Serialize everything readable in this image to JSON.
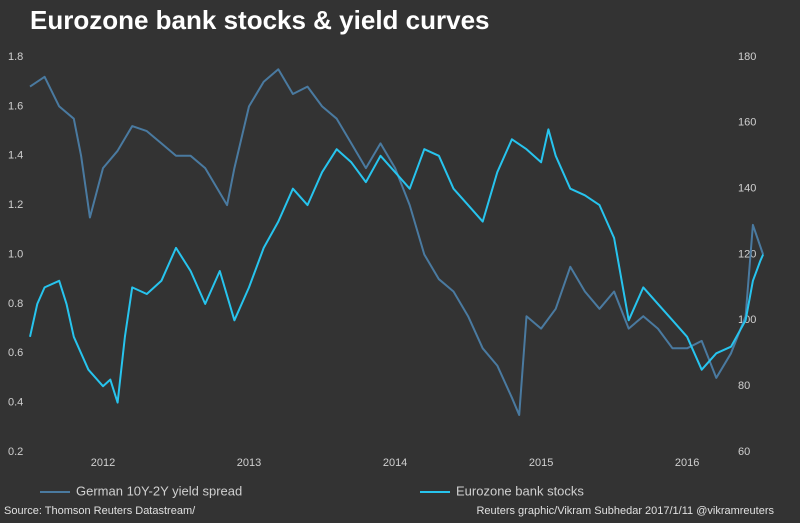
{
  "chart_data": {
    "type": "line",
    "title": "Eurozone bank stocks & yield curves",
    "source": "Source: Thomson Reuters Datastream/",
    "credit": "Reuters graphic/Vikram Subhedar 2017/1/11  @vikramreuters",
    "xlim": [
      2011.5,
      2016.54
    ],
    "xticks": [
      2012,
      2013,
      2014,
      2015,
      2016
    ],
    "ylim": [
      0.2,
      1.8
    ],
    "yticks": [
      0.2,
      0.4,
      0.6,
      0.8,
      {
        "value": 1,
        "label": "1.0"
      },
      1.2,
      1.4,
      1.6,
      1.8
    ],
    "y2lim": [
      60,
      180
    ],
    "y2ticks": [
      60,
      80,
      100,
      120,
      140,
      160,
      180
    ],
    "grid": false,
    "legend": "bottom",
    "series": [
      {
        "name": "German 10Y-2Y yield spread",
        "color": "#4a7aa0",
        "axis": "y",
        "x": [
          2011.5,
          2011.6,
          2011.7,
          2011.8,
          2011.85,
          2011.91,
          2012.0,
          2012.1,
          2012.2,
          2012.3,
          2012.4,
          2012.5,
          2012.6,
          2012.7,
          2012.8,
          2012.85,
          2012.9,
          2013.0,
          2013.1,
          2013.2,
          2013.3,
          2013.4,
          2013.5,
          2013.6,
          2013.7,
          2013.8,
          2013.9,
          2014.0,
          2014.1,
          2014.2,
          2014.3,
          2014.4,
          2014.5,
          2014.6,
          2014.7,
          2014.8,
          2014.85,
          2014.9,
          2015.0,
          2015.1,
          2015.2,
          2015.3,
          2015.4,
          2015.5,
          2015.6,
          2015.7,
          2015.8,
          2015.9,
          2016.0,
          2016.1,
          2016.2,
          2016.3,
          2016.4,
          2016.45,
          2016.52
        ],
        "values": [
          1.68,
          1.72,
          1.6,
          1.55,
          1.4,
          1.15,
          1.35,
          1.42,
          1.52,
          1.5,
          1.45,
          1.4,
          1.4,
          1.35,
          1.25,
          1.2,
          1.35,
          1.6,
          1.7,
          1.75,
          1.65,
          1.68,
          1.6,
          1.55,
          1.45,
          1.35,
          1.45,
          1.35,
          1.2,
          1.0,
          0.9,
          0.85,
          0.75,
          0.62,
          0.55,
          0.42,
          0.35,
          0.75,
          0.7,
          0.78,
          0.95,
          0.85,
          0.78,
          0.85,
          0.7,
          0.75,
          0.7,
          0.62,
          0.62,
          0.65,
          0.5,
          0.6,
          0.75,
          1.12,
          1.0
        ]
      },
      {
        "name": "Eurozone bank stocks",
        "color": "#27c4ee",
        "axis": "y2",
        "x": [
          2011.5,
          2011.55,
          2011.6,
          2011.7,
          2011.75,
          2011.8,
          2011.9,
          2012.0,
          2012.05,
          2012.1,
          2012.15,
          2012.2,
          2012.3,
          2012.4,
          2012.5,
          2012.6,
          2012.7,
          2012.8,
          2012.9,
          2013.0,
          2013.1,
          2013.2,
          2013.3,
          2013.4,
          2013.5,
          2013.6,
          2013.7,
          2013.8,
          2013.9,
          2014.0,
          2014.1,
          2014.2,
          2014.3,
          2014.4,
          2014.5,
          2014.6,
          2014.7,
          2014.8,
          2014.9,
          2015.0,
          2015.05,
          2015.1,
          2015.2,
          2015.3,
          2015.4,
          2015.5,
          2015.6,
          2015.7,
          2015.8,
          2015.9,
          2016.0,
          2016.1,
          2016.2,
          2016.3,
          2016.4,
          2016.45,
          2016.5,
          2016.52
        ],
        "values": [
          95,
          105,
          110,
          112,
          105,
          95,
          85,
          80,
          82,
          75,
          95,
          110,
          108,
          112,
          122,
          115,
          105,
          115,
          100,
          110,
          122,
          130,
          140,
          135,
          145,
          152,
          148,
          142,
          150,
          145,
          140,
          152,
          150,
          140,
          135,
          130,
          145,
          155,
          152,
          148,
          158,
          150,
          140,
          138,
          135,
          125,
          100,
          110,
          105,
          100,
          95,
          85,
          90,
          92,
          100,
          112,
          118,
          120
        ]
      }
    ]
  }
}
